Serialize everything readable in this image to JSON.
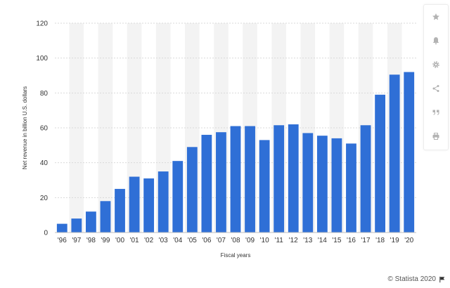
{
  "chart_data": {
    "type": "bar",
    "categories": [
      "'96",
      "'97",
      "'98",
      "'99",
      "'00",
      "'01",
      "'02",
      "'03",
      "'04",
      "'05",
      "'06",
      "'07",
      "'08",
      "'09",
      "'10",
      "'11",
      "'12",
      "'13",
      "'14",
      "'15",
      "'16",
      "'17",
      "'18",
      "'19",
      "'20"
    ],
    "values": [
      5,
      8,
      12,
      18,
      25,
      32,
      31,
      35,
      41,
      49,
      56,
      57.5,
      61,
      61,
      53,
      61.5,
      62,
      57,
      55.5,
      54,
      51,
      61.5,
      79,
      90.5,
      92
    ],
    "title": "",
    "xlabel": "Fiscal years",
    "ylabel": "Net revenue in billion U.S. dollars",
    "ylim": [
      0,
      120
    ],
    "yticks": [
      0,
      20,
      40,
      60,
      80,
      100,
      120
    ],
    "grid": true,
    "bar_color": "#2f6fd6",
    "band_color": "#f3f3f3"
  },
  "toolbar": {
    "buttons": [
      {
        "name": "star-icon"
      },
      {
        "name": "bell-icon"
      },
      {
        "name": "gear-icon"
      },
      {
        "name": "share-icon"
      },
      {
        "name": "quote-icon"
      },
      {
        "name": "print-icon"
      }
    ]
  },
  "credit": {
    "text": "© Statista 2020",
    "icon": "flag-icon"
  }
}
